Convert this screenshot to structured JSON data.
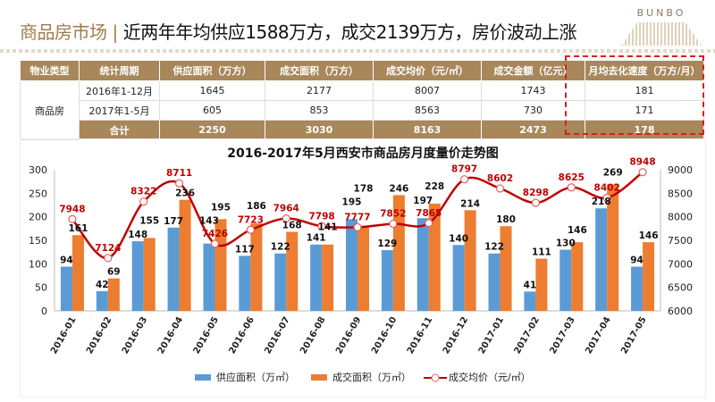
{
  "header": {
    "topic": "商品房市场",
    "separator": "|",
    "headline": "近两年年均供应1588万方，成交2139万方，房价波动上涨",
    "logo": "BUNBO"
  },
  "table": {
    "columns": [
      "物业类型",
      "统计周期",
      "供应面积（万方）",
      "成交面积（万方）",
      "成交均价（元/㎡）",
      "成交金额（亿元）",
      "月均去化速度（万方/月）"
    ],
    "type": "商品房",
    "rows": [
      [
        "2016年1-12月",
        "1645",
        "2177",
        "8007",
        "1743",
        "181"
      ],
      [
        "2017年1-5月",
        "605",
        "853",
        "8563",
        "730",
        "171"
      ]
    ],
    "total": [
      "合计",
      "2250",
      "3030",
      "8163",
      "2473",
      "178"
    ]
  },
  "colors": {
    "supply": "#5b9bd5",
    "deal": "#ed7d31",
    "price": "#c00000",
    "table_header": "#a8875b",
    "highlight": "#d42020"
  },
  "chart_data": {
    "type": "bar+line",
    "title": "2016-2017年5月西安市商品房月度量价走势图",
    "categories": [
      "2016-01",
      "2016-02",
      "2016-03",
      "2016-04",
      "2016-05",
      "2016-06",
      "2016-07",
      "2016-08",
      "2016-09",
      "2016-10",
      "2016-11",
      "2016-12",
      "2017-01",
      "2017-02",
      "2017-03",
      "2017-04",
      "2017-05"
    ],
    "series": [
      {
        "name": "供应面积（万㎡）",
        "type": "bar",
        "axis": "left",
        "values": [
          94,
          42,
          148,
          177,
          143,
          117,
          122,
          141,
          195,
          129,
          197,
          140,
          122,
          41,
          130,
          218,
          94
        ]
      },
      {
        "name": "成交面积（万㎡）",
        "type": "bar",
        "axis": "left",
        "values": [
          161,
          69,
          155,
          236,
          195,
          186,
          168,
          141,
          178,
          246,
          228,
          214,
          180,
          111,
          146,
          269,
          146
        ]
      },
      {
        "name": "成交均价（元/㎡）",
        "type": "line",
        "axis": "right",
        "values": [
          7948,
          7124,
          8322,
          8711,
          7426,
          7723,
          7964,
          7798,
          7777,
          7852,
          7865,
          8797,
          8602,
          8298,
          8625,
          8402,
          8948
        ]
      }
    ],
    "y_left": {
      "range": [
        0,
        300
      ],
      "ticks": [
        "0",
        "50",
        "100",
        "150",
        "200",
        "250",
        "300"
      ]
    },
    "y_right": {
      "range": [
        6000,
        9000
      ],
      "ticks": [
        "6000",
        "6500",
        "7000",
        "7500",
        "8000",
        "8500",
        "9000"
      ]
    },
    "legend": "bottom",
    "grid": false
  }
}
